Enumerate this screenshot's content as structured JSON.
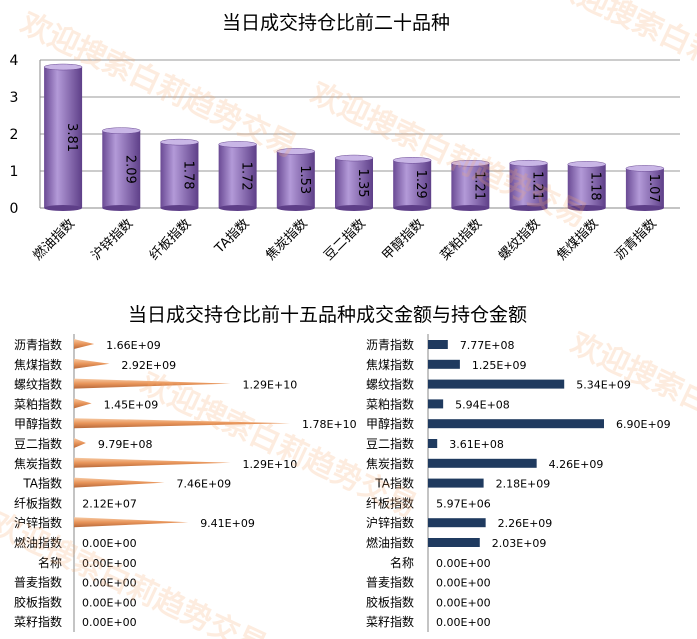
{
  "chart_data": [
    {
      "type": "bar",
      "title": "当日成交持仓比前二十品种",
      "categories": [
        "燃油指数",
        "沪锌指数",
        "纤板指数",
        "TA指数",
        "焦炭指数",
        "豆二指数",
        "甲醇指数",
        "菜粕指数",
        "螺纹指数",
        "焦煤指数",
        "沥青指数"
      ],
      "values": [
        3.81,
        2.09,
        1.78,
        1.72,
        1.53,
        1.35,
        1.29,
        1.21,
        1.21,
        1.18,
        1.07
      ],
      "value_labels": [
        "3.81",
        "2.09",
        "1.78",
        "1.72",
        "1.53",
        "1.35",
        "1.29",
        "1.21",
        "1.21",
        "1.18",
        "1.07"
      ],
      "ylim": [
        0,
        4
      ],
      "yticks": [
        "0",
        "1",
        "2",
        "3",
        "4"
      ],
      "grid": true,
      "color": "#8e6bb8"
    },
    {
      "type": "bar",
      "title": "当日成交持仓比前十五品种成交金额与持仓金额",
      "categories": [
        "沥青指数",
        "焦煤指数",
        "螺纹指数",
        "菜粕指数",
        "甲醇指数",
        "豆二指数",
        "焦炭指数",
        "TA指数",
        "纤板指数",
        "沪锌指数",
        "燃油指数",
        "名称",
        "普麦指数",
        "胶板指数",
        "菜籽指数"
      ],
      "series": [
        {
          "name": "成交金额",
          "color": "#e8955a",
          "values": [
            1660000000.0,
            2920000000.0,
            12900000000.0,
            1450000000.0,
            17800000000.0,
            979000000.0,
            12900000000.0,
            7460000000.0,
            21200000.0,
            9410000000.0,
            0,
            0,
            0,
            0,
            0
          ],
          "labels": [
            "1.66E+09",
            "2.92E+09",
            "1.29E+10",
            "1.45E+09",
            "1.78E+10",
            "9.79E+08",
            "1.29E+10",
            "7.46E+09",
            "2.12E+07",
            "9.41E+09",
            "0.00E+00",
            "0.00E+00",
            "0.00E+00",
            "0.00E+00",
            "0.00E+00"
          ]
        },
        {
          "name": "持仓金额",
          "color": "#1f3a5f",
          "values": [
            777000000.0,
            1250000000.0,
            5340000000.0,
            594000000.0,
            6900000000.0,
            361000000.0,
            4260000000.0,
            2180000000.0,
            5970000.0,
            2260000000.0,
            2030000000.0,
            0,
            0,
            0,
            0
          ],
          "labels": [
            "7.77E+08",
            "1.25E+09",
            "5.34E+09",
            "5.94E+08",
            "6.90E+09",
            "3.61E+08",
            "4.26E+09",
            "2.18E+09",
            "5.97E+06",
            "2.26E+09",
            "2.03E+09",
            "0.00E+00",
            "0.00E+00",
            "0.00E+00",
            "0.00E+00"
          ]
        }
      ]
    }
  ],
  "watermark": "欢迎搜索白莉趋势交易"
}
